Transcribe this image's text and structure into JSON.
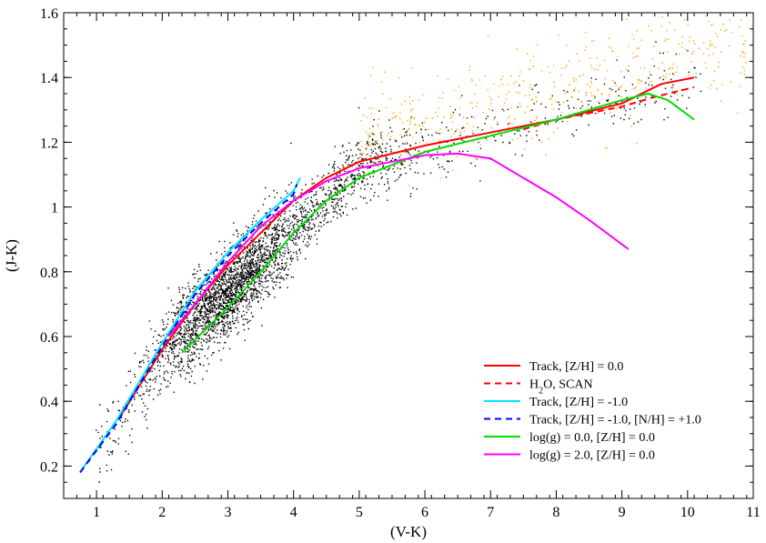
{
  "chart_data": {
    "type": "line",
    "xlabel": "(V-K)",
    "ylabel": "(J-K)",
    "xlim": [
      0.5,
      11
    ],
    "ylim": [
      0.1,
      1.6
    ],
    "xticks": [
      1,
      2,
      3,
      4,
      5,
      6,
      7,
      8,
      9,
      10,
      11
    ],
    "yticks": [
      0.2,
      0.4,
      0.6,
      0.8,
      1,
      1.2,
      1.4,
      1.6
    ],
    "grid": false,
    "legend_position": "bottom-right",
    "series": [
      {
        "name": "Track, [Z/H] = 0.0",
        "color": "#ff0000",
        "dash": "solid",
        "points": [
          [
            1.35,
            0.35
          ],
          [
            2.0,
            0.56
          ],
          [
            2.5,
            0.7
          ],
          [
            3.0,
            0.82
          ],
          [
            3.5,
            0.92
          ],
          [
            4.0,
            1.02
          ],
          [
            4.5,
            1.09
          ],
          [
            5.0,
            1.14
          ],
          [
            6.0,
            1.19
          ],
          [
            7.0,
            1.23
          ],
          [
            8.0,
            1.27
          ],
          [
            9.0,
            1.32
          ],
          [
            9.6,
            1.38
          ],
          [
            10.1,
            1.4
          ]
        ]
      },
      {
        "name": "H2O, SCAN",
        "color": "#ff0000",
        "dash": "dashed",
        "points": [
          [
            7.5,
            1.24
          ],
          [
            8.0,
            1.27
          ],
          [
            8.5,
            1.29
          ],
          [
            9.0,
            1.31
          ],
          [
            9.5,
            1.34
          ],
          [
            10.1,
            1.37
          ]
        ]
      },
      {
        "name": "Track, [Z/H] = -1.0",
        "color": "#00e5ff",
        "dash": "solid",
        "points": [
          [
            0.78,
            0.19
          ],
          [
            1.3,
            0.34
          ],
          [
            2.0,
            0.58
          ],
          [
            2.5,
            0.74
          ],
          [
            3.0,
            0.86
          ],
          [
            3.5,
            0.96
          ],
          [
            4.0,
            1.05
          ],
          [
            4.1,
            1.09
          ]
        ]
      },
      {
        "name": "Track, [Z/H] = -1.0, [N/H] = +1.0",
        "color": "#0000ff",
        "dash": "dashed",
        "points": [
          [
            0.75,
            0.18
          ],
          [
            1.3,
            0.33
          ],
          [
            2.0,
            0.57
          ],
          [
            2.5,
            0.73
          ],
          [
            3.0,
            0.85
          ],
          [
            3.5,
            0.95
          ],
          [
            4.0,
            1.04
          ],
          [
            4.05,
            1.07
          ]
        ]
      },
      {
        "name": "log(g) = 0.0, [Z/H] = 0.0",
        "color": "#00dd00",
        "dash": "solid",
        "points": [
          [
            2.3,
            0.55
          ],
          [
            3.0,
            0.69
          ],
          [
            3.5,
            0.8
          ],
          [
            4.0,
            0.92
          ],
          [
            4.5,
            1.02
          ],
          [
            5.0,
            1.09
          ],
          [
            6.0,
            1.17
          ],
          [
            7.0,
            1.22
          ],
          [
            8.0,
            1.27
          ],
          [
            9.0,
            1.33
          ],
          [
            9.4,
            1.35
          ],
          [
            9.7,
            1.33
          ],
          [
            10.1,
            1.27
          ]
        ]
      },
      {
        "name": "log(g) = 2.0, [Z/H] = 0.0",
        "color": "#ff00ff",
        "dash": "solid",
        "points": [
          [
            2.1,
            0.6
          ],
          [
            2.5,
            0.7
          ],
          [
            3.0,
            0.83
          ],
          [
            3.5,
            0.94
          ],
          [
            4.0,
            1.02
          ],
          [
            4.5,
            1.08
          ],
          [
            5.0,
            1.12
          ],
          [
            5.5,
            1.14
          ],
          [
            6.0,
            1.16
          ],
          [
            6.5,
            1.165
          ],
          [
            7.0,
            1.15
          ],
          [
            7.5,
            1.09
          ],
          [
            8.0,
            1.03
          ],
          [
            8.5,
            0.96
          ],
          [
            9.1,
            0.87
          ]
        ]
      }
    ],
    "scatter": {
      "black_color": "#000000",
      "orange_color": "#ffa500",
      "seed": 12345,
      "black_count": 9000,
      "orange_count": 500
    }
  }
}
